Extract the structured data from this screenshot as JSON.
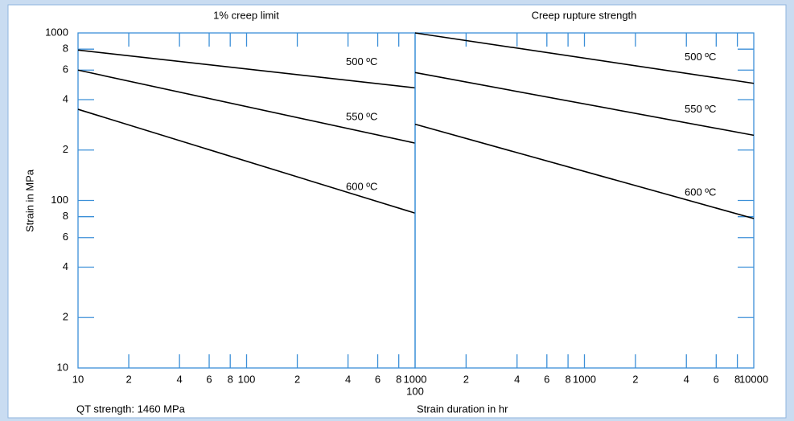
{
  "chart_data": [
    {
      "type": "line",
      "title": "1% creep limit",
      "y_label": "Strain in MPa",
      "annotation": "QT strength: 1460 MPa",
      "log_x": true,
      "log_y": true,
      "x": [
        10,
        1000
      ],
      "series": [
        {
          "name": "500 ºC",
          "color": "#000000",
          "values": [
            790,
            470
          ]
        },
        {
          "name": "550 ºC",
          "color": "#000000",
          "values": [
            600,
            220
          ]
        },
        {
          "name": "600 ºC",
          "color": "#000000",
          "values": [
            350,
            84
          ]
        }
      ],
      "xlim": [
        10,
        1000
      ],
      "ylim": [
        10,
        1000
      ],
      "xticks": [
        10,
        {
          "value": 20,
          "label": "2"
        },
        {
          "value": 40,
          "label": "4"
        },
        {
          "value": 60,
          "label": "6"
        },
        {
          "value": 80,
          "label": "8"
        },
        100,
        {
          "value": 200,
          "label": "2"
        },
        {
          "value": 400,
          "label": "4"
        },
        {
          "value": 600,
          "label": "6"
        },
        {
          "value": 800,
          "label": "8"
        },
        1000
      ],
      "yticks": [
        1000,
        {
          "value": 800,
          "label": "8"
        },
        {
          "value": 600,
          "label": "6"
        },
        {
          "value": 400,
          "label": "4"
        },
        {
          "value": 200,
          "label": "2"
        },
        100,
        {
          "value": 80,
          "label": "8"
        },
        {
          "value": 60,
          "label": "6"
        },
        {
          "value": 40,
          "label": "4"
        },
        {
          "value": 20,
          "label": "2"
        },
        10
      ]
    },
    {
      "type": "line",
      "title": "Creep rupture strength",
      "x_label": "Strain duration in hr",
      "log_x": true,
      "log_y": true,
      "x": [
        100,
        10000
      ],
      "series": [
        {
          "name": "500 ºC",
          "color": "#000000",
          "values": [
            1000,
            500
          ]
        },
        {
          "name": "550 ºC",
          "color": "#000000",
          "values": [
            580,
            245
          ]
        },
        {
          "name": "600 ºC",
          "color": "#000000",
          "values": [
            285,
            78
          ]
        }
      ],
      "xlim": [
        100,
        10000
      ],
      "ylim": [
        10,
        1000
      ],
      "xticks": [
        100,
        {
          "value": 200,
          "label": "2"
        },
        {
          "value": 400,
          "label": "4"
        },
        {
          "value": 600,
          "label": "6"
        },
        {
          "value": 800,
          "label": "8"
        },
        1000,
        {
          "value": 2000,
          "label": "2"
        },
        {
          "value": 4000,
          "label": "4"
        },
        {
          "value": 6000,
          "label": "6"
        },
        {
          "value": 8000,
          "label": "8"
        },
        10000
      ]
    }
  ]
}
